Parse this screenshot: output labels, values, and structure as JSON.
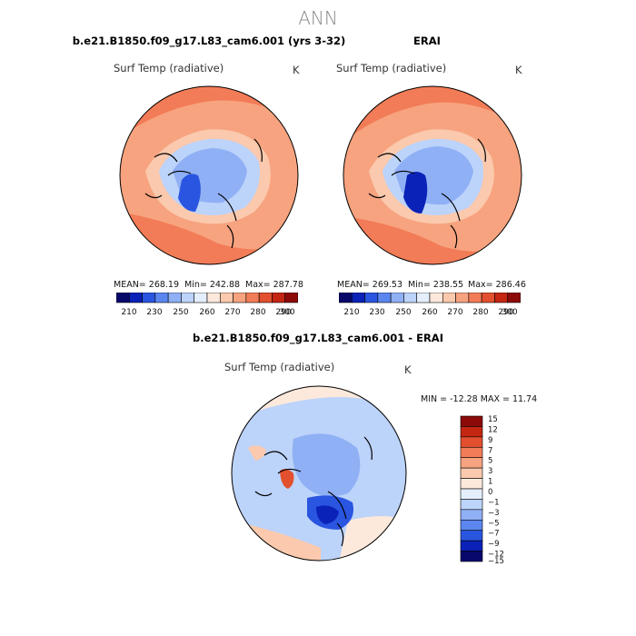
{
  "header": {
    "title": "ANN"
  },
  "colors": {
    "abs_scale": [
      "#08086b",
      "#0a22b8",
      "#2a55e0",
      "#5b86f0",
      "#8fb0f5",
      "#bcd3fa",
      "#e4eefc",
      "#fde9dc",
      "#fbc9ad",
      "#f7a37f",
      "#f27c57",
      "#e2502f",
      "#c42612",
      "#8c0b08"
    ],
    "diff_scale": [
      "#08086b",
      "#0a22b8",
      "#2a55e0",
      "#5b86f0",
      "#8fb0f5",
      "#bcd3fa",
      "#e4eefc",
      "#fde9dc",
      "#fbc9ad",
      "#f7a37f",
      "#f27c57",
      "#e2502f",
      "#c42612",
      "#8c0b08"
    ]
  },
  "panels": {
    "model": {
      "title": "b.e21.B1850.f09_g17.L83_cam6.001 (yrs 3-32)",
      "variable": "Surf Temp (radiative)",
      "unit": "K",
      "mean": "MEAN= 268.19",
      "min": "Min= 242.88",
      "max": "Max= 287.78"
    },
    "obs": {
      "title": "ERAI",
      "variable": "Surf Temp (radiative)",
      "unit": "K",
      "mean": "MEAN= 269.53",
      "min": "Min= 238.55",
      "max": "Max= 286.46"
    },
    "diff": {
      "title": "b.e21.B1850.f09_g17.L83_cam6.001 - ERAI",
      "variable": "Surf Temp (radiative)",
      "unit": "K",
      "minmax": "MIN = -12.28  MAX =  11.74"
    }
  },
  "chart_data": [
    {
      "type": "polar-map",
      "title": "b.e21.B1850.f09_g17.L83_cam6.001 (yrs 3-32)",
      "variable": "Surf Temp (radiative)",
      "units": "K",
      "mean": 268.19,
      "min": 242.88,
      "max": 287.78,
      "colorbar_ticks": [
        "210",
        "230",
        "250",
        "260",
        "270",
        "280",
        "290",
        "300"
      ]
    },
    {
      "type": "polar-map",
      "title": "ERAI",
      "variable": "Surf Temp (radiative)",
      "units": "K",
      "mean": 269.53,
      "min": 238.55,
      "max": 286.46,
      "colorbar_ticks": [
        "210",
        "230",
        "250",
        "260",
        "270",
        "280",
        "290",
        "300"
      ]
    },
    {
      "type": "polar-map",
      "title": "b.e21.B1850.f09_g17.L83_cam6.001 - ERAI",
      "variable": "Surf Temp (radiative)",
      "units": "K",
      "min": -12.28,
      "max": 11.74,
      "colorbar_ticks": [
        "15",
        "12",
        "9",
        "7",
        "5",
        "3",
        "1",
        "0",
        "−1",
        "−3",
        "−5",
        "−7",
        "−9",
        "−12",
        "−15"
      ]
    }
  ]
}
